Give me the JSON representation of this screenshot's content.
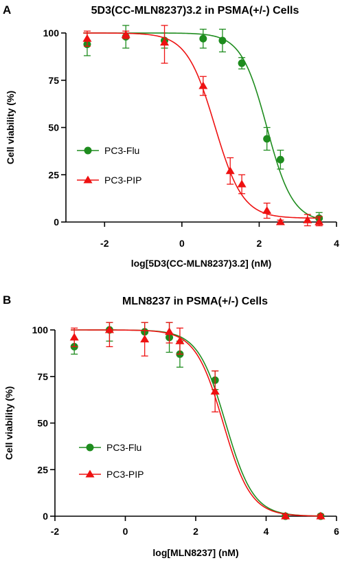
{
  "colors": {
    "flu": "#1e8c1e",
    "pip": "#ee1111",
    "axis": "#000000"
  },
  "chart_data": [
    {
      "panel": "A",
      "type": "scatter",
      "title": "5D3(CC-MLN8237)3.2 in PSMA(+/-) Cells",
      "xlabel": "log[5D3(CC-MLN8237)3.2] (nM)",
      "ylabel": "Cell viability (%)",
      "xlim": [
        -3,
        4
      ],
      "ylim": [
        0,
        100
      ],
      "xticks": [
        -2,
        0,
        2,
        4
      ],
      "yticks": [
        0,
        25,
        50,
        75,
        100
      ],
      "legend_position": "center-left",
      "fit": "sigmoidal dose-response",
      "series": [
        {
          "name": "PC3-Flu",
          "color": "#1e8c1e",
          "marker": "circle",
          "x": [
            -2.45,
            -1.45,
            -0.45,
            0.55,
            1.05,
            1.55,
            2.2,
            2.55,
            3.55
          ],
          "y": [
            94,
            98,
            96,
            97,
            96,
            84,
            44,
            33,
            2
          ],
          "err": [
            6,
            6,
            4,
            5,
            6,
            3,
            6,
            5,
            3
          ],
          "curve": {
            "top": 100,
            "bottom": 0,
            "logEC50": 2.2,
            "hill": 1.3
          }
        },
        {
          "name": "PC3-PIP",
          "color": "#ee1111",
          "marker": "triangle",
          "x": [
            -2.45,
            -1.45,
            -0.45,
            0.55,
            1.25,
            1.55,
            2.2,
            2.55,
            3.25,
            3.55
          ],
          "y": [
            97,
            99,
            95,
            72,
            27,
            20,
            6,
            0,
            1,
            0
          ],
          "err": [
            4,
            2,
            11,
            5,
            7,
            5,
            4,
            1,
            3,
            3
          ],
          "curve": {
            "top": 100,
            "bottom": 2,
            "logEC50": 0.85,
            "hill": 1.2
          }
        }
      ]
    },
    {
      "panel": "B",
      "type": "scatter",
      "title": "MLN8237 in PSMA(+/-) Cells",
      "xlabel": "log[MLN8237] (nM)",
      "ylabel": "Cell viability (%)",
      "xlim": [
        -2,
        6
      ],
      "ylim": [
        0,
        100
      ],
      "xticks": [
        -2,
        0,
        2,
        4,
        6
      ],
      "yticks": [
        0,
        25,
        50,
        75,
        100
      ],
      "legend_position": "center-left",
      "fit": "sigmoidal dose-response",
      "series": [
        {
          "name": "PC3-Flu",
          "color": "#1e8c1e",
          "marker": "circle",
          "x": [
            -1.45,
            -0.45,
            0.55,
            1.25,
            1.55,
            2.55,
            4.55,
            5.55
          ],
          "y": [
            91,
            100,
            99,
            96,
            87,
            73,
            0,
            0
          ],
          "err": [
            4,
            6,
            5,
            8,
            7,
            5,
            1,
            1
          ],
          "curve": {
            "top": 100,
            "bottom": 0,
            "logEC50": 2.85,
            "hill": 1.1
          }
        },
        {
          "name": "PC3-PIP",
          "color": "#ee1111",
          "marker": "triangle",
          "x": [
            -1.45,
            -0.45,
            0.55,
            1.25,
            1.55,
            2.55,
            4.55,
            5.55
          ],
          "y": [
            96,
            100,
            95,
            99,
            94,
            67,
            0,
            0
          ],
          "err": [
            5,
            9,
            9,
            6,
            7,
            11,
            1,
            1
          ],
          "curve": {
            "top": 100,
            "bottom": 0,
            "logEC50": 2.78,
            "hill": 1.1
          }
        }
      ]
    }
  ]
}
